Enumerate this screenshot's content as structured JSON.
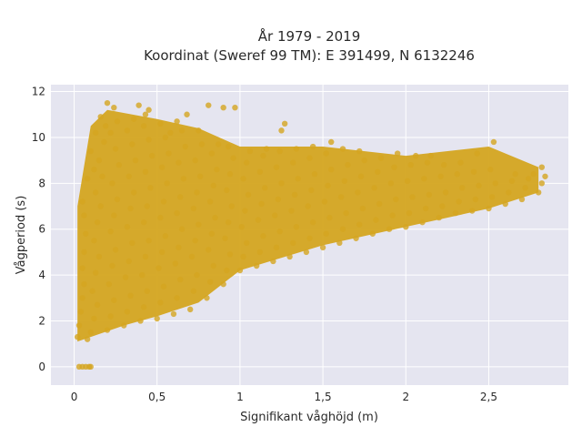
{
  "chart_data": {
    "type": "scatter",
    "title_line1": "År 1979 - 2019",
    "title_line2": "Koordinat (Sweref 99 TM): E 391499, N 6132246",
    "xlabel": "Signifikant våghöjd (m)",
    "ylabel": "Vågperiod (s)",
    "xlim": [
      -0.14,
      2.98
    ],
    "ylim": [
      -0.8,
      12.3
    ],
    "x_ticks": [
      {
        "value": 0,
        "label": "0"
      },
      {
        "value": 0.5,
        "label": "0,5"
      },
      {
        "value": 1,
        "label": "1"
      },
      {
        "value": 1.5,
        "label": "1,5"
      },
      {
        "value": 2,
        "label": "2"
      },
      {
        "value": 2.5,
        "label": "2,5"
      }
    ],
    "y_ticks": [
      {
        "value": 0,
        "label": "0"
      },
      {
        "value": 2,
        "label": "2"
      },
      {
        "value": 4,
        "label": "4"
      },
      {
        "value": 6,
        "label": "6"
      },
      {
        "value": 8,
        "label": "8"
      },
      {
        "value": 10,
        "label": "10"
      },
      {
        "value": 12,
        "label": "12"
      }
    ],
    "grid": true,
    "background_color": "#e5e5f0",
    "marker_color": "#d4a520",
    "point_envelope": {
      "description": "dense cloud of hourly wave observations",
      "lower_edge": [
        [
          0.02,
          1.1
        ],
        [
          0.1,
          1.3
        ],
        [
          0.3,
          1.8
        ],
        [
          0.5,
          2.2
        ],
        [
          0.75,
          2.8
        ],
        [
          1.0,
          4.2
        ],
        [
          1.5,
          5.3
        ],
        [
          2.0,
          6.1
        ],
        [
          2.5,
          6.9
        ],
        [
          2.8,
          7.6
        ]
      ],
      "upper_edge": [
        [
          0.02,
          7.0
        ],
        [
          0.1,
          10.5
        ],
        [
          0.2,
          11.2
        ],
        [
          0.5,
          10.8
        ],
        [
          0.75,
          10.4
        ],
        [
          1.0,
          9.6
        ],
        [
          1.5,
          9.6
        ],
        [
          2.0,
          9.2
        ],
        [
          2.5,
          9.6
        ],
        [
          2.8,
          8.7
        ]
      ]
    },
    "series": [
      {
        "values": [
          [
            0.03,
            0
          ],
          [
            0.05,
            0
          ],
          [
            0.07,
            0
          ],
          [
            0.09,
            0
          ],
          [
            0.1,
            0
          ],
          [
            0.02,
            1.3
          ],
          [
            0.03,
            1.8
          ],
          [
            0.04,
            2.4
          ],
          [
            0.05,
            3.0
          ],
          [
            0.06,
            3.6
          ],
          [
            0.05,
            4.3
          ],
          [
            0.06,
            5.0
          ],
          [
            0.07,
            5.8
          ],
          [
            0.06,
            6.6
          ],
          [
            0.05,
            7.2
          ],
          [
            0.08,
            8.2
          ],
          [
            0.1,
            9.4
          ],
          [
            0.12,
            8.6
          ],
          [
            0.08,
            1.2
          ],
          [
            0.1,
            1.5
          ],
          [
            0.12,
            2.1
          ],
          [
            0.14,
            2.7
          ],
          [
            0.11,
            3.3
          ],
          [
            0.13,
            4.1
          ],
          [
            0.15,
            4.8
          ],
          [
            0.12,
            5.5
          ],
          [
            0.14,
            6.3
          ],
          [
            0.16,
            7.0
          ],
          [
            0.13,
            7.6
          ],
          [
            0.17,
            8.3
          ],
          [
            0.15,
            9.0
          ],
          [
            0.18,
            9.8
          ],
          [
            0.13,
            10.2
          ],
          [
            0.16,
            10.9
          ],
          [
            0.19,
            10.5
          ],
          [
            0.2,
            1.6
          ],
          [
            0.22,
            2.2
          ],
          [
            0.24,
            2.9
          ],
          [
            0.21,
            3.6
          ],
          [
            0.23,
            4.4
          ],
          [
            0.25,
            5.1
          ],
          [
            0.22,
            5.9
          ],
          [
            0.24,
            6.6
          ],
          [
            0.26,
            7.3
          ],
          [
            0.23,
            8.0
          ],
          [
            0.27,
            8.8
          ],
          [
            0.25,
            9.5
          ],
          [
            0.22,
            10.2
          ],
          [
            0.26,
            10.7
          ],
          [
            0.2,
            11.5
          ],
          [
            0.24,
            11.3
          ],
          [
            0.3,
            1.8
          ],
          [
            0.32,
            2.4
          ],
          [
            0.34,
            3.1
          ],
          [
            0.31,
            3.9
          ],
          [
            0.33,
            4.6
          ],
          [
            0.35,
            5.4
          ],
          [
            0.32,
            6.1
          ],
          [
            0.34,
            6.9
          ],
          [
            0.36,
            7.6
          ],
          [
            0.33,
            8.3
          ],
          [
            0.37,
            9.0
          ],
          [
            0.35,
            9.7
          ],
          [
            0.32,
            10.3
          ],
          [
            0.36,
            10.8
          ],
          [
            0.39,
            11.4
          ],
          [
            0.4,
            2.0
          ],
          [
            0.42,
            2.6
          ],
          [
            0.44,
            3.3
          ],
          [
            0.41,
            4.0
          ],
          [
            0.43,
            4.8
          ],
          [
            0.45,
            5.5
          ],
          [
            0.42,
            6.3
          ],
          [
            0.44,
            7.0
          ],
          [
            0.46,
            7.8
          ],
          [
            0.43,
            8.5
          ],
          [
            0.47,
            9.2
          ],
          [
            0.45,
            9.9
          ],
          [
            0.42,
            10.5
          ],
          [
            0.45,
            11.2
          ],
          [
            0.43,
            11.0
          ],
          [
            0.5,
            2.1
          ],
          [
            0.52,
            2.8
          ],
          [
            0.54,
            3.5
          ],
          [
            0.51,
            4.3
          ],
          [
            0.53,
            5.0
          ],
          [
            0.55,
            5.7
          ],
          [
            0.52,
            6.5
          ],
          [
            0.54,
            7.2
          ],
          [
            0.56,
            8.0
          ],
          [
            0.53,
            8.7
          ],
          [
            0.57,
            9.3
          ],
          [
            0.55,
            10.0
          ],
          [
            0.52,
            10.6
          ],
          [
            0.58,
            10.2
          ],
          [
            0.6,
            2.3
          ],
          [
            0.62,
            3.0
          ],
          [
            0.64,
            3.8
          ],
          [
            0.61,
            4.5
          ],
          [
            0.63,
            5.2
          ],
          [
            0.65,
            6.0
          ],
          [
            0.62,
            6.7
          ],
          [
            0.64,
            7.4
          ],
          [
            0.66,
            8.2
          ],
          [
            0.63,
            8.9
          ],
          [
            0.67,
            9.6
          ],
          [
            0.65,
            10.3
          ],
          [
            0.62,
            10.7
          ],
          [
            0.7,
            2.5
          ],
          [
            0.72,
            3.3
          ],
          [
            0.74,
            4.0
          ],
          [
            0.71,
            4.8
          ],
          [
            0.73,
            5.5
          ],
          [
            0.75,
            6.2
          ],
          [
            0.72,
            6.9
          ],
          [
            0.74,
            7.6
          ],
          [
            0.76,
            8.3
          ],
          [
            0.73,
            9.0
          ],
          [
            0.77,
            9.7
          ],
          [
            0.75,
            10.3
          ],
          [
            0.68,
            11.0
          ],
          [
            0.8,
            3.0
          ],
          [
            0.82,
            3.7
          ],
          [
            0.84,
            4.4
          ],
          [
            0.81,
            5.1
          ],
          [
            0.83,
            5.8
          ],
          [
            0.85,
            6.5
          ],
          [
            0.82,
            7.2
          ],
          [
            0.84,
            7.9
          ],
          [
            0.86,
            8.6
          ],
          [
            0.83,
            9.3
          ],
          [
            0.87,
            9.7
          ],
          [
            0.81,
            11.4
          ],
          [
            0.9,
            3.6
          ],
          [
            0.92,
            4.2
          ],
          [
            0.94,
            4.9
          ],
          [
            0.91,
            5.6
          ],
          [
            0.93,
            6.3
          ],
          [
            0.95,
            7.0
          ],
          [
            0.92,
            7.7
          ],
          [
            0.94,
            8.4
          ],
          [
            0.96,
            9.1
          ],
          [
            0.93,
            9.6
          ],
          [
            0.9,
            11.3
          ],
          [
            1.0,
            4.2
          ],
          [
            1.02,
            4.8
          ],
          [
            1.04,
            5.4
          ],
          [
            1.01,
            6.1
          ],
          [
            1.03,
            6.8
          ],
          [
            1.05,
            7.5
          ],
          [
            1.02,
            8.2
          ],
          [
            1.04,
            8.9
          ],
          [
            1.06,
            9.4
          ],
          [
            0.97,
            11.3
          ],
          [
            1.1,
            4.4
          ],
          [
            1.12,
            5.0
          ],
          [
            1.14,
            5.7
          ],
          [
            1.11,
            6.4
          ],
          [
            1.13,
            7.1
          ],
          [
            1.15,
            7.8
          ],
          [
            1.12,
            8.5
          ],
          [
            1.14,
            9.2
          ],
          [
            1.16,
            9.5
          ],
          [
            1.2,
            4.6
          ],
          [
            1.22,
            5.2
          ],
          [
            1.24,
            5.9
          ],
          [
            1.21,
            6.6
          ],
          [
            1.23,
            7.3
          ],
          [
            1.25,
            8.0
          ],
          [
            1.22,
            8.7
          ],
          [
            1.24,
            9.4
          ],
          [
            1.27,
            10.6
          ],
          [
            1.25,
            10.3
          ],
          [
            1.3,
            4.8
          ],
          [
            1.32,
            5.4
          ],
          [
            1.34,
            6.1
          ],
          [
            1.31,
            6.8
          ],
          [
            1.33,
            7.5
          ],
          [
            1.35,
            8.2
          ],
          [
            1.32,
            8.9
          ],
          [
            1.34,
            9.5
          ],
          [
            1.4,
            5.0
          ],
          [
            1.42,
            5.6
          ],
          [
            1.44,
            6.3
          ],
          [
            1.41,
            7.0
          ],
          [
            1.43,
            7.7
          ],
          [
            1.45,
            8.4
          ],
          [
            1.42,
            9.1
          ],
          [
            1.44,
            9.6
          ],
          [
            1.5,
            5.2
          ],
          [
            1.52,
            5.8
          ],
          [
            1.54,
            6.5
          ],
          [
            1.51,
            7.2
          ],
          [
            1.53,
            7.9
          ],
          [
            1.55,
            8.6
          ],
          [
            1.52,
            9.3
          ],
          [
            1.55,
            9.8
          ],
          [
            1.6,
            5.4
          ],
          [
            1.62,
            6.0
          ],
          [
            1.64,
            6.7
          ],
          [
            1.61,
            7.4
          ],
          [
            1.63,
            8.1
          ],
          [
            1.65,
            8.8
          ],
          [
            1.62,
            9.5
          ],
          [
            1.7,
            5.6
          ],
          [
            1.72,
            6.2
          ],
          [
            1.74,
            6.9
          ],
          [
            1.71,
            7.6
          ],
          [
            1.73,
            8.3
          ],
          [
            1.75,
            9.0
          ],
          [
            1.72,
            9.4
          ],
          [
            1.8,
            5.8
          ],
          [
            1.82,
            6.4
          ],
          [
            1.84,
            7.1
          ],
          [
            1.81,
            7.8
          ],
          [
            1.83,
            8.5
          ],
          [
            1.85,
            9.1
          ],
          [
            1.9,
            6.0
          ],
          [
            1.92,
            6.6
          ],
          [
            1.94,
            7.3
          ],
          [
            1.91,
            8.0
          ],
          [
            1.93,
            8.7
          ],
          [
            1.95,
            9.3
          ],
          [
            2.0,
            6.1
          ],
          [
            2.02,
            6.7
          ],
          [
            2.04,
            7.4
          ],
          [
            2.01,
            8.1
          ],
          [
            2.03,
            8.8
          ],
          [
            2.06,
            9.2
          ],
          [
            2.1,
            6.3
          ],
          [
            2.12,
            6.9
          ],
          [
            2.14,
            7.5
          ],
          [
            2.11,
            8.2
          ],
          [
            2.13,
            8.9
          ],
          [
            2.15,
            9.2
          ],
          [
            2.2,
            6.5
          ],
          [
            2.22,
            7.0
          ],
          [
            2.24,
            7.6
          ],
          [
            2.21,
            8.3
          ],
          [
            2.23,
            8.8
          ],
          [
            2.3,
            6.7
          ],
          [
            2.32,
            7.2
          ],
          [
            2.34,
            7.8
          ],
          [
            2.31,
            8.4
          ],
          [
            2.33,
            8.9
          ],
          [
            2.4,
            6.8
          ],
          [
            2.42,
            7.3
          ],
          [
            2.44,
            7.9
          ],
          [
            2.41,
            8.5
          ],
          [
            2.43,
            9.3
          ],
          [
            2.5,
            6.9
          ],
          [
            2.52,
            7.4
          ],
          [
            2.54,
            8.0
          ],
          [
            2.51,
            8.6
          ],
          [
            2.53,
            9.8
          ],
          [
            2.6,
            7.1
          ],
          [
            2.62,
            7.6
          ],
          [
            2.64,
            8.1
          ],
          [
            2.66,
            8.4
          ],
          [
            2.7,
            7.3
          ],
          [
            2.72,
            7.8
          ],
          [
            2.74,
            8.2
          ],
          [
            2.77,
            8.4
          ],
          [
            2.8,
            7.6
          ],
          [
            2.82,
            8.0
          ],
          [
            2.84,
            8.3
          ],
          [
            2.82,
            8.7
          ]
        ]
      }
    ]
  }
}
